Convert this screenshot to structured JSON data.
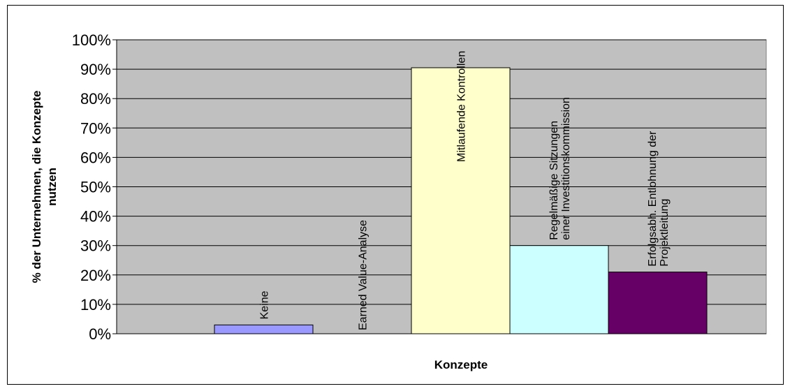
{
  "chart_data": {
    "type": "bar",
    "categories": [
      "Keine",
      "Earned Value-Analyse",
      "Mitlaufende Kontrollen",
      "Regelmäßige Sitzungen einer Investitionskommission",
      "Erfolgsabh. Entlohnung der Projektleitung"
    ],
    "category_label_lines": [
      [
        "Keine"
      ],
      [
        "Earned Value-Analyse"
      ],
      [
        "Mitlaufende Kontrollen"
      ],
      [
        "Regelmäßige Sitzungen",
        "einer Investitionskommission"
      ],
      [
        "Erfolgsabh. Entlohnung der",
        "Projektleitung"
      ]
    ],
    "values": [
      3,
      0,
      90.5,
      30,
      21
    ],
    "colors": [
      "#9999ff",
      "#ffffff",
      "#ffffcc",
      "#ccffff",
      "#660066"
    ],
    "ylim": [
      0,
      100
    ],
    "yticks": [
      0,
      10,
      20,
      30,
      40,
      50,
      60,
      70,
      80,
      90,
      100
    ],
    "ytick_labels": [
      "0%",
      "10%",
      "20%",
      "30%",
      "40%",
      "50%",
      "60%",
      "70%",
      "80%",
      "90%",
      "100%"
    ],
    "ylabel_lines": [
      "% der Unternehmen, die Konzepte",
      "nutzen"
    ],
    "xlabel": "Konzepte",
    "grid": true,
    "plot_background": "#c0c0c0"
  }
}
